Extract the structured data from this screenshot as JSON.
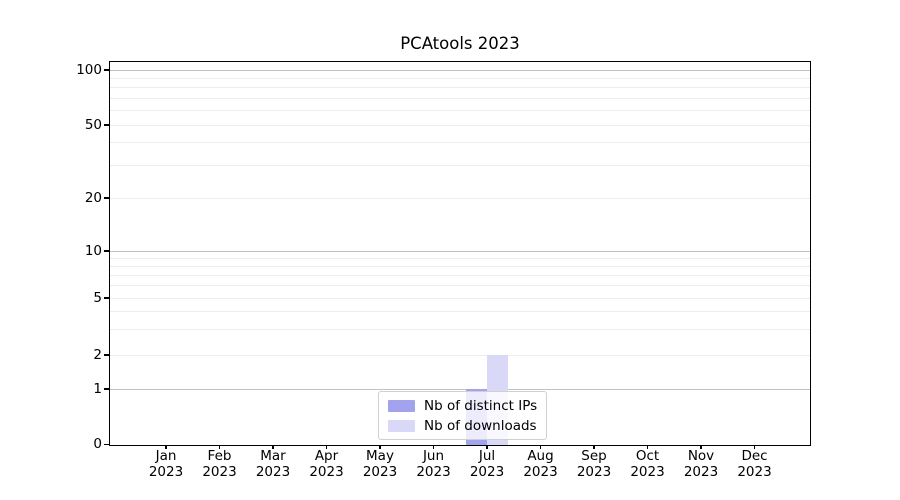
{
  "chart_data": {
    "type": "bar",
    "title": "PCAtools 2023",
    "categories": [
      "Jan",
      "Feb",
      "Mar",
      "Apr",
      "May",
      "Jun",
      "Jul",
      "Aug",
      "Sep",
      "Oct",
      "Nov",
      "Dec"
    ],
    "x_tick_year": "2023",
    "series": [
      {
        "name": "Nb of distinct IPs",
        "color": "#a2a2ef",
        "values": [
          0,
          0,
          0,
          0,
          0,
          0,
          1,
          0,
          0,
          0,
          0,
          0
        ]
      },
      {
        "name": "Nb of downloads",
        "color": "#d9d9f7",
        "values": [
          0,
          0,
          0,
          0,
          0,
          0,
          2,
          0,
          0,
          0,
          0,
          0
        ]
      }
    ],
    "yticks": [
      0,
      1,
      2,
      5,
      10,
      20,
      50,
      100
    ],
    "ylim": [
      0,
      110
    ],
    "yscale": "log-like with 0 baseline",
    "grid": {
      "show": true,
      "major_values": [
        1,
        10,
        100
      ],
      "minor_values": [
        2,
        3,
        4,
        5,
        6,
        7,
        8,
        9,
        20,
        30,
        40,
        50,
        60,
        70,
        80,
        90
      ]
    },
    "legend": {
      "position": "lower center, inside plot",
      "entries": [
        "Nb of distinct IPs",
        "Nb of downloads"
      ]
    }
  },
  "colors": {
    "background": "#ffffff",
    "spine": "#000000",
    "major_grid": "#c2c2c2",
    "minor_grid": "#ededed",
    "legend_border": "#d0d0d0",
    "text": "#000000"
  }
}
